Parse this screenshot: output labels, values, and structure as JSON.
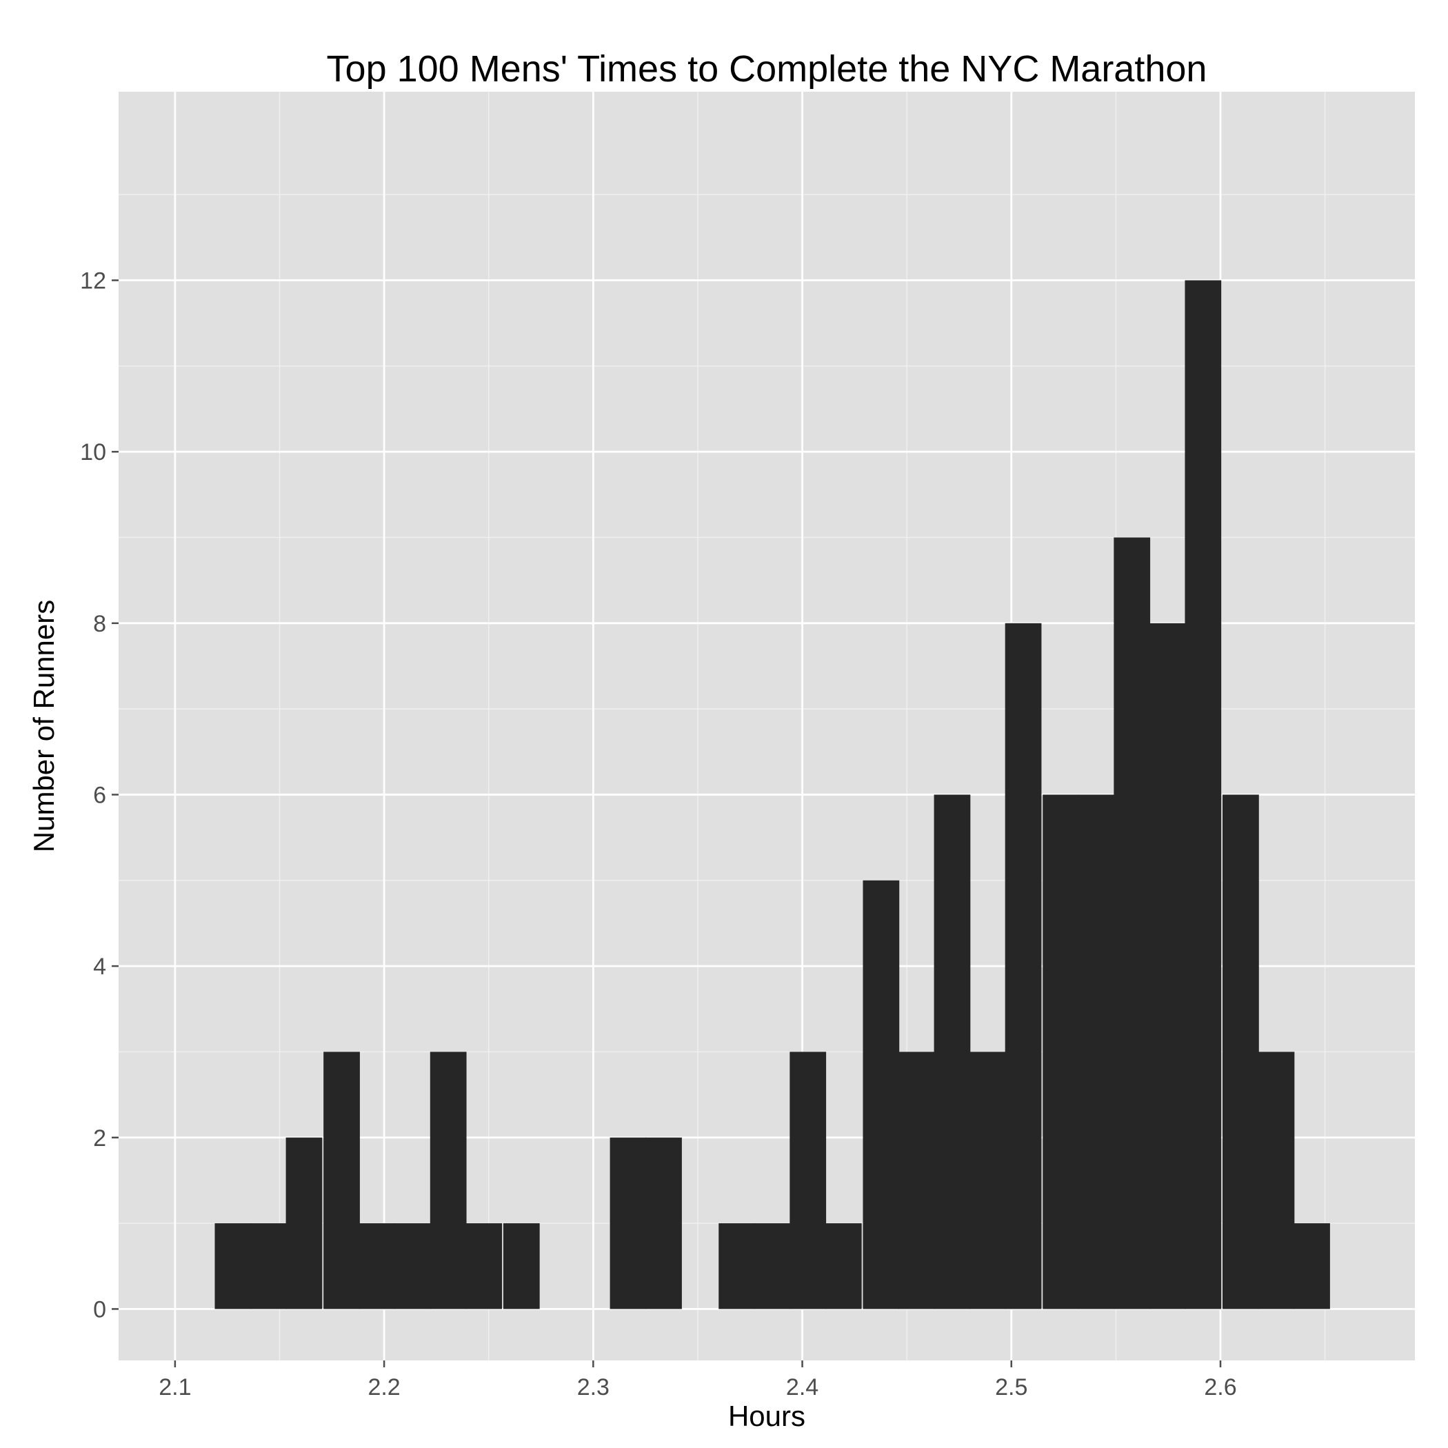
{
  "chart_data": {
    "type": "bar",
    "subtype": "histogram",
    "title": "Top 100 Mens' Times to Complete the NYC Marathon",
    "xlabel": "Hours",
    "ylabel": "Number of Runners",
    "bin_width": 0.0172,
    "bins": [
      {
        "start": 2.119,
        "count": 1
      },
      {
        "start": 2.136,
        "count": 1
      },
      {
        "start": 2.153,
        "count": 2
      },
      {
        "start": 2.171,
        "count": 3
      },
      {
        "start": 2.188,
        "count": 1
      },
      {
        "start": 2.205,
        "count": 1
      },
      {
        "start": 2.222,
        "count": 3
      },
      {
        "start": 2.239,
        "count": 1
      },
      {
        "start": 2.257,
        "count": 1
      },
      {
        "start": 2.274,
        "count": 0
      },
      {
        "start": 2.291,
        "count": 0
      },
      {
        "start": 2.308,
        "count": 2
      },
      {
        "start": 2.325,
        "count": 2
      },
      {
        "start": 2.343,
        "count": 0
      },
      {
        "start": 2.36,
        "count": 1
      },
      {
        "start": 2.377,
        "count": 1
      },
      {
        "start": 2.394,
        "count": 3
      },
      {
        "start": 2.411,
        "count": 1
      },
      {
        "start": 2.429,
        "count": 5
      },
      {
        "start": 2.446,
        "count": 3
      },
      {
        "start": 2.463,
        "count": 6
      },
      {
        "start": 2.48,
        "count": 3
      },
      {
        "start": 2.497,
        "count": 8
      },
      {
        "start": 2.515,
        "count": 6
      },
      {
        "start": 2.532,
        "count": 6
      },
      {
        "start": 2.549,
        "count": 9
      },
      {
        "start": 2.566,
        "count": 8
      },
      {
        "start": 2.583,
        "count": 12
      },
      {
        "start": 2.601,
        "count": 6
      },
      {
        "start": 2.618,
        "count": 3
      },
      {
        "start": 2.635,
        "count": 1
      }
    ],
    "xlim": [
      2.073,
      2.693
    ],
    "ylim": [
      -0.6,
      14.2
    ],
    "x_ticks": [
      2.1,
      2.2,
      2.3,
      2.4,
      2.5,
      2.6
    ],
    "x_tick_labels": [
      "2.1",
      "2.2",
      "2.3",
      "2.4",
      "2.5",
      "2.6"
    ],
    "y_ticks": [
      0,
      2,
      4,
      6,
      8,
      10,
      12
    ],
    "y_tick_labels": [
      "0",
      "2",
      "4",
      "6",
      "8",
      "10",
      "12"
    ],
    "grid": true,
    "legend": "none",
    "colors": {
      "bar": "#262626",
      "panel": "#e0e0e0",
      "grid_major": "#ffffff",
      "grid_minor": "#f0f0f0",
      "tick_label": "#4d4d4d"
    }
  }
}
